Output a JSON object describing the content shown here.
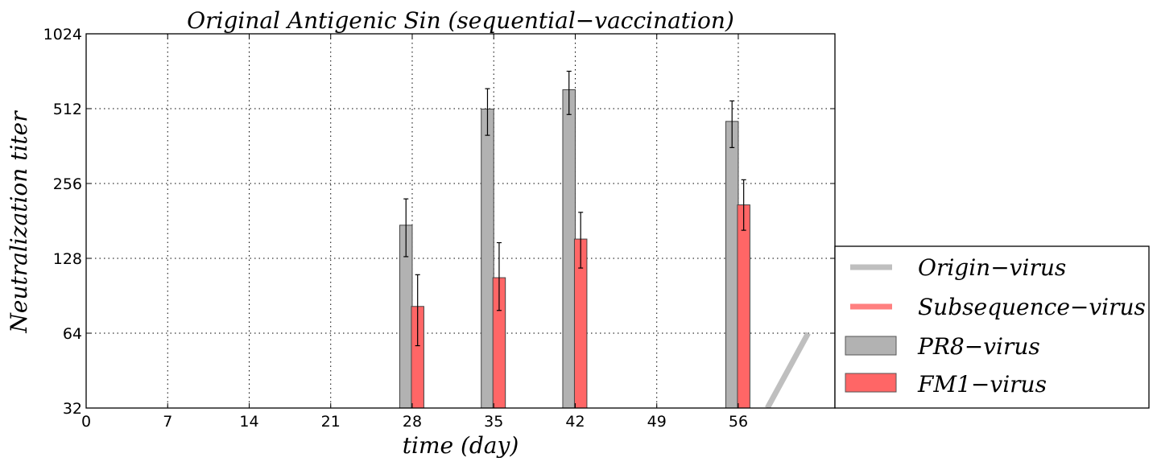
{
  "chart_data": {
    "type": "bar",
    "title": "Original Antigenic Sin (sequential−vaccination)",
    "xlabel": "time (day)",
    "ylabel": "Neutralization  titer",
    "yscale": "log2",
    "xlim": [
      0,
      64.3
    ],
    "ylim": [
      32,
      1024
    ],
    "xticks": [
      0,
      7,
      14,
      21,
      28,
      35,
      42,
      49,
      56
    ],
    "yticks": [
      32,
      64,
      128,
      256,
      512,
      1024
    ],
    "grid": true,
    "legend_position": "lower-right, outside axes",
    "legend": [
      {
        "label": "Origin−virus",
        "kind": "line",
        "color": "#bfbfbf"
      },
      {
        "label": "Subsequence−virus",
        "kind": "line",
        "color": "#ff8080"
      },
      {
        "label": "PR8−virus",
        "kind": "bar",
        "color": "#b2b2b2"
      },
      {
        "label": "FM1−virus",
        "kind": "bar",
        "color": "#ff6666"
      }
    ],
    "series": [
      {
        "name": "PR8−virus",
        "color": "#b2b2b2",
        "x": [
          28,
          35,
          42,
          56
        ],
        "values": [
          174,
          510,
          610,
          455
        ],
        "err_low": [
          130,
          400,
          485,
          357
        ],
        "err_high": [
          222,
          616,
          724,
          550
        ]
      },
      {
        "name": "FM1−virus",
        "color": "#ff6666",
        "x": [
          29,
          36,
          43,
          57
        ],
        "values": [
          82,
          107,
          153,
          210
        ],
        "err_low": [
          57,
          79,
          117,
          166
        ],
        "err_high": [
          110,
          148,
          196,
          265
        ]
      }
    ],
    "lines": [
      {
        "name": "Origin−virus",
        "color": "#bfbfbf",
        "x": [
          58.5,
          62
        ],
        "y": [
          32,
          64
        ]
      }
    ]
  }
}
